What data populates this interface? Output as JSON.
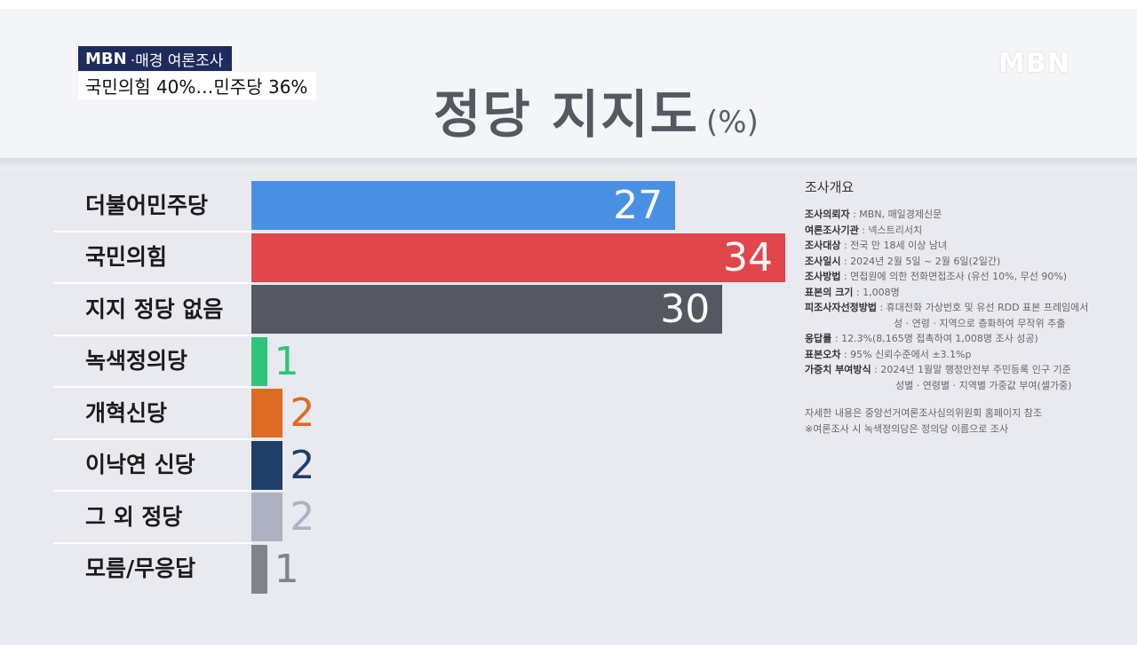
{
  "caption": {
    "logo": "MBN",
    "source": "·매경 여론조사",
    "headline": "국민의힘 40%…민주당 36%"
  },
  "watermark": "MBN",
  "title": "정당 지지도",
  "title_unit": "(%)",
  "chart_data": {
    "type": "bar",
    "orientation": "horizontal",
    "title": "정당 지지도",
    "unit": "(%)",
    "categories": [
      "더불어민주당",
      "국민의힘",
      "지지 정당 없음",
      "녹색정의당",
      "개혁신당",
      "이낙연 신당",
      "그 외 정당",
      "모름/무응답"
    ],
    "values": [
      27,
      34,
      30,
      1,
      2,
      2,
      2,
      1
    ],
    "colors": [
      "#4a90e2",
      "#e0464b",
      "#555860",
      "#2fc47b",
      "#de6b22",
      "#1f3f66",
      "#aeb1c1",
      "#80838a"
    ],
    "xlim": [
      0,
      34
    ],
    "grid": false,
    "legend": "none"
  },
  "survey": {
    "title": "조사개요",
    "rows": [
      {
        "key": "조사의뢰자",
        "value": " : MBN, 매일경제신문"
      },
      {
        "key": "여론조사기관",
        "value": " : 넥스트리서치"
      },
      {
        "key": "조사대상",
        "value": " : 전국 만 18세 이상 남녀"
      },
      {
        "key": "조사일시",
        "value": " : 2024년 2월 5일 ~ 2월 6일(2일간)"
      },
      {
        "key": "조사방법",
        "value": " : 면접원에 의한 전화면접조사 (유선 10%, 무선 90%)"
      },
      {
        "key": "표본의 크기",
        "value": " : 1,008명"
      },
      {
        "key": "피조사자선정방법",
        "value": " : 휴대전화 가상번호 및 유선 RDD 표본 프레임에서"
      },
      {
        "key": "",
        "value": "성 · 연령 · 지역으로 층화하여 무작위 추출"
      },
      {
        "key": "응답률",
        "value": " : 12.3%(8,165명 접촉하여 1,008명 조사 성공)"
      },
      {
        "key": "표본오차",
        "value": " : 95% 신뢰수준에서 ±3.1%p"
      },
      {
        "key": "가중치 부여방식",
        "value": " : 2024년 1월말 행정안전부 주민등록 인구 기준"
      },
      {
        "key": "",
        "value": "성별 · 연령별 · 지역별 가중값 부여(셀가중)"
      }
    ],
    "notes": [
      "자세한 내용은 중앙선거여론조사심의위원회 홈페이지 참조",
      "※여론조사 시 녹색정의당은 정의당 이름으로 조사"
    ]
  }
}
